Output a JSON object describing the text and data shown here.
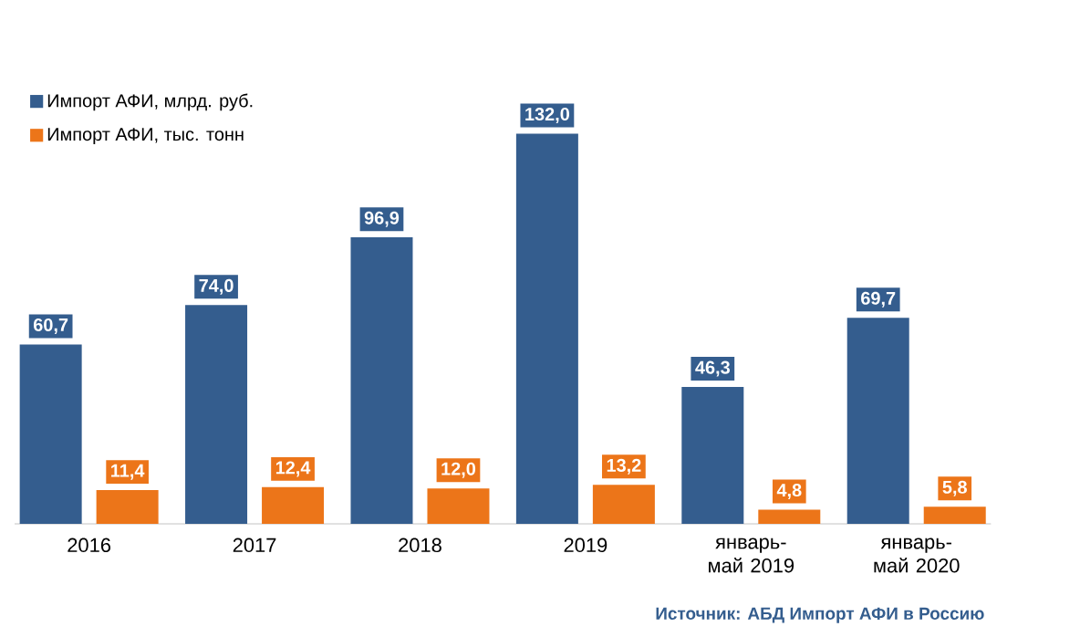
{
  "chart_data": {
    "type": "bar",
    "categories": [
      "2016",
      "2017",
      "2018",
      "2019",
      "январь-май 2019",
      "январь-май 2020"
    ],
    "series": [
      {
        "name": "Импорт АФИ, млрд. руб.",
        "color": "#345d8e",
        "values": [
          60.7,
          74.0,
          96.9,
          132.0,
          46.3,
          69.7
        ],
        "value_labels": [
          "60,7",
          "74,0",
          "96,9",
          "132,0",
          "46,3",
          "69,7"
        ]
      },
      {
        "name": "Импорт АФИ, тыс. тонн",
        "color": "#ec7519",
        "values": [
          11.4,
          12.4,
          12.0,
          13.2,
          4.8,
          5.8
        ],
        "value_labels": [
          "11,4",
          "12,4",
          "12,0",
          "13,2",
          "4,8",
          "5,8"
        ]
      }
    ],
    "legend": "top left",
    "annotations": [
      "Источник: АБД Импорт АФИ в Россию"
    ]
  }
}
